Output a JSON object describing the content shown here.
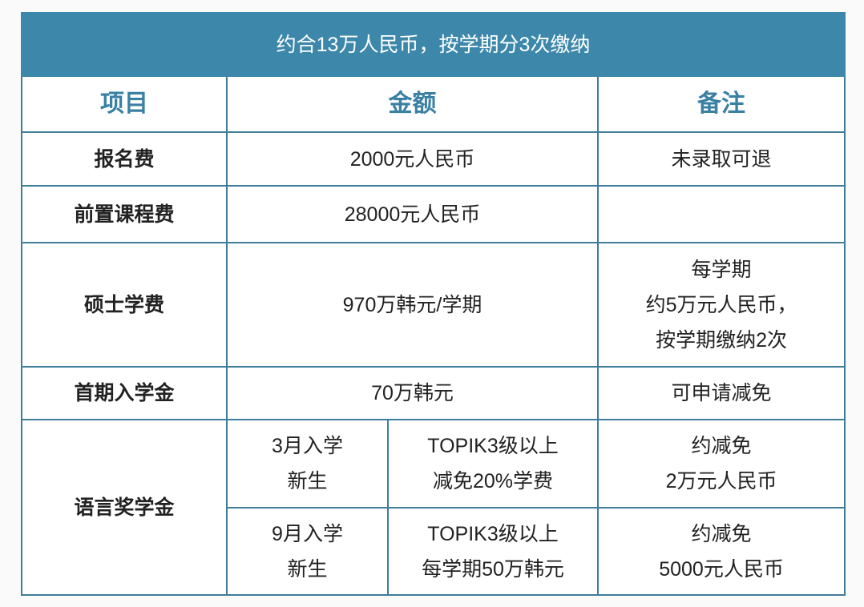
{
  "title": "约合13万人民币，按学期分3次缴纳",
  "headers": [
    "项目",
    "金额",
    "备注"
  ],
  "rows": [
    {
      "item": "报名费",
      "amount": "2000元人民币",
      "note": "未录取可退"
    },
    {
      "item": "前置课程费",
      "amount": "28000元人民币",
      "note": ""
    },
    {
      "item": "硕士学费",
      "amount": "970万韩元/学期",
      "note_lines": [
        "每学期",
        "约5万元人民币，",
        "按学期缴纳2次"
      ]
    },
    {
      "item": "首期入学金",
      "amount": "70万韩元",
      "note": "可申请减免"
    }
  ],
  "scholarship": {
    "item": "语言奖学金",
    "sub": [
      {
        "intake": [
          "3月入学",
          "新生"
        ],
        "condition": [
          "TOPIK3级以上",
          "减免20%学费"
        ],
        "note": [
          "约减免",
          "2万元人民币"
        ]
      },
      {
        "intake": [
          "9月入学",
          "新生"
        ],
        "condition": [
          "TOPIK3级以上",
          "每学期50万韩元"
        ],
        "note": [
          "约减免",
          "5000元人民币"
        ]
      }
    ]
  },
  "colors": {
    "header_bg": "#3d88aa",
    "header_text": "#3a80a3",
    "border": "#3f7d98"
  }
}
